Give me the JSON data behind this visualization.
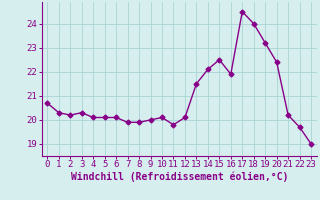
{
  "x": [
    0,
    1,
    2,
    3,
    4,
    5,
    6,
    7,
    8,
    9,
    10,
    11,
    12,
    13,
    14,
    15,
    16,
    17,
    18,
    19,
    20,
    21,
    22,
    23
  ],
  "y": [
    20.7,
    20.3,
    20.2,
    20.3,
    20.1,
    20.1,
    20.1,
    19.9,
    19.9,
    20.0,
    20.1,
    19.8,
    20.1,
    21.5,
    22.1,
    22.5,
    21.9,
    24.5,
    24.0,
    23.2,
    22.4,
    20.2,
    19.7,
    19.0
  ],
  "line_color": "#880088",
  "marker": "D",
  "markersize": 2.5,
  "linewidth": 1.0,
  "bg_color": "#d7eeee",
  "grid_color": "#aad4d4",
  "xlabel": "Windchill (Refroidissement éolien,°C)",
  "xlabel_fontsize": 7,
  "xtick_labels": [
    "0",
    "1",
    "2",
    "3",
    "4",
    "5",
    "6",
    "7",
    "8",
    "9",
    "10",
    "11",
    "12",
    "13",
    "14",
    "15",
    "16",
    "17",
    "18",
    "19",
    "20",
    "21",
    "22",
    "23"
  ],
  "ytick_positions": [
    19,
    20,
    21,
    22,
    23,
    24
  ],
  "ylim": [
    18.5,
    24.9
  ],
  "xlim": [
    -0.5,
    23.5
  ],
  "tick_fontsize": 6.5,
  "tick_color": "#880088",
  "axis_color": "#880088"
}
